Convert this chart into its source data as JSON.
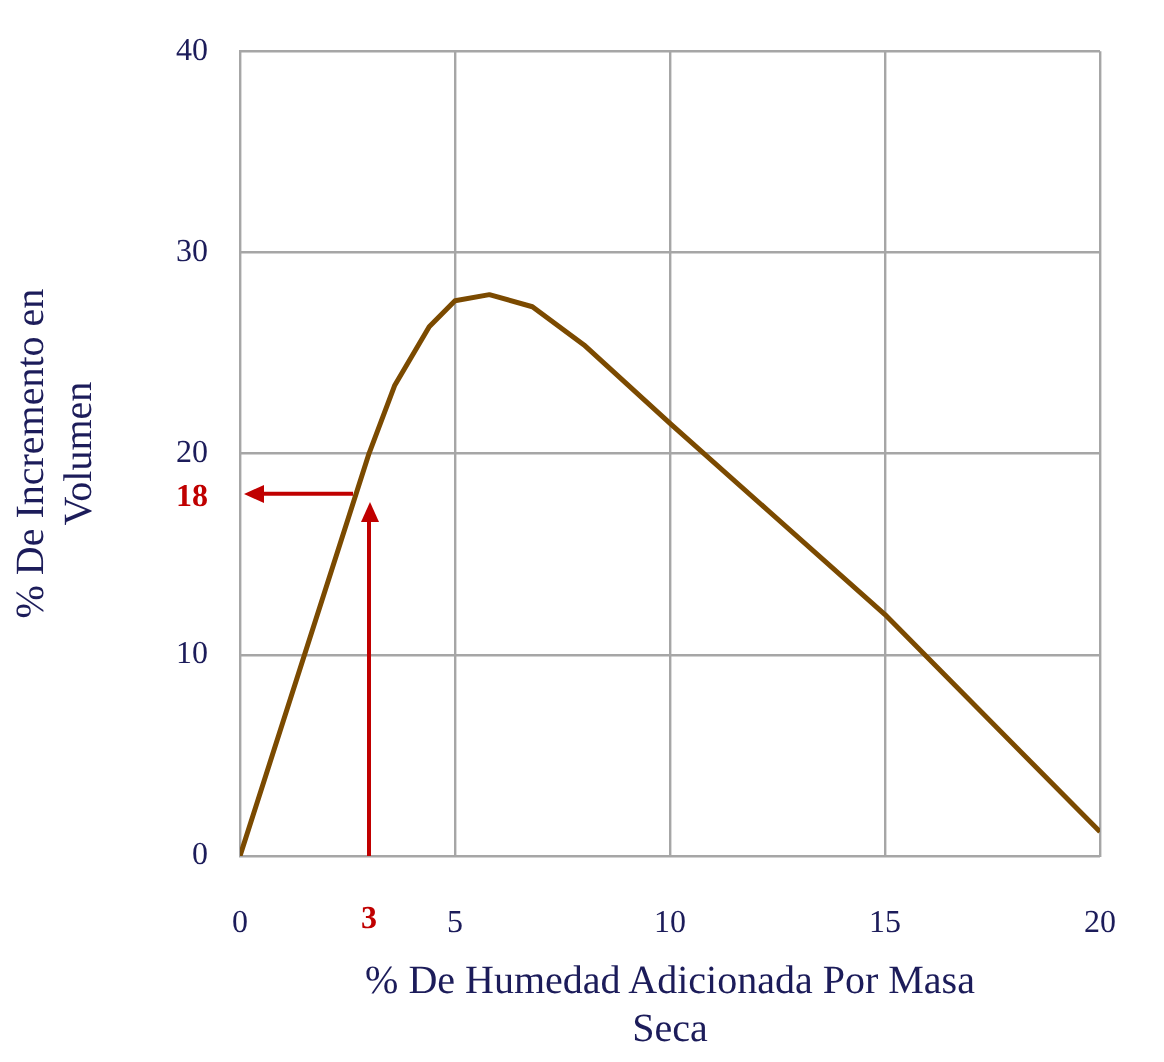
{
  "chart_data": {
    "type": "line",
    "xlabel": "% De Humedad Adicionada Por Masa Seca",
    "ylabel": "% De Incremento en Volumen",
    "x": [
      0,
      3,
      3.6,
      4.4,
      5,
      5.8,
      6.8,
      8,
      10,
      15,
      20
    ],
    "series": [
      {
        "color": "#7b4a00",
        "values": [
          0,
          20,
          23.4,
          26.3,
          27.6,
          27.9,
          27.3,
          25.4,
          21.5,
          12,
          1.2
        ]
      }
    ],
    "xlim": [
      0,
      20
    ],
    "xticks": [
      0,
      5,
      10,
      15,
      20
    ],
    "ylim": [
      0,
      40
    ],
    "yticks": [
      0,
      10,
      20,
      30,
      40
    ],
    "grid": true,
    "legend": false,
    "marker": "none",
    "line_style": "solid",
    "ref_lines": [
      {
        "axis": "y",
        "value": 18,
        "label": "18",
        "color": "#c00000"
      },
      {
        "axis": "x",
        "value": 3,
        "label": "3",
        "color": "#c00000"
      }
    ]
  }
}
